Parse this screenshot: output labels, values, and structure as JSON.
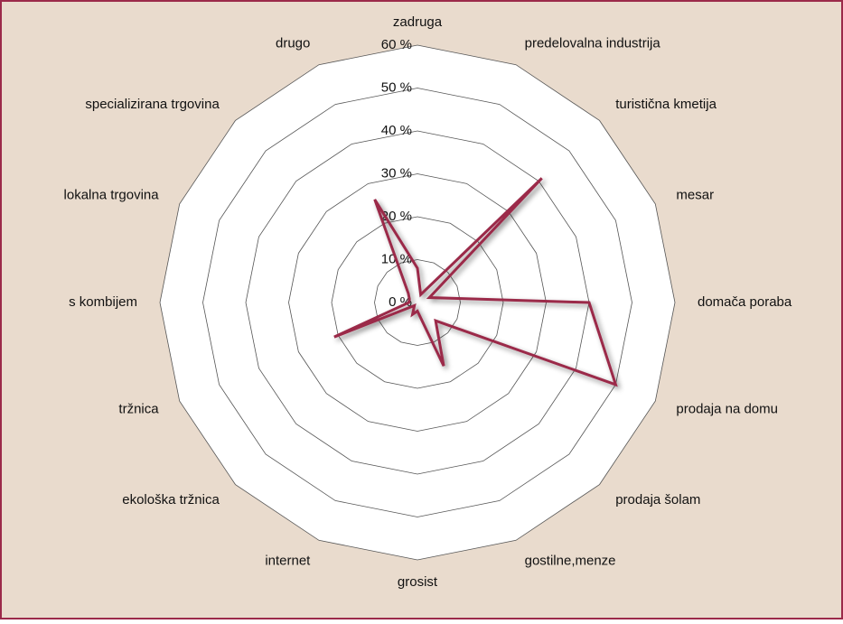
{
  "chart_data": {
    "type": "radar",
    "categories": [
      "zadruga",
      "predelovalna industrija",
      "turistična kmetija",
      "mesar",
      "domača poraba",
      "prodaja na domu",
      "prodaja šolam",
      "gostilne,menze",
      "grosist",
      "internet",
      "ekološka tržnica",
      "tržnica",
      "s kombijem",
      "lokalna trgovina",
      "specializirana trgovina",
      "drugo"
    ],
    "series": [
      {
        "color": "#9b2a4a",
        "values": [
          8,
          2,
          41,
          3,
          40,
          50,
          6,
          16,
          2,
          3,
          1,
          21,
          2,
          2,
          3,
          26
        ]
      }
    ],
    "rlim": [
      0,
      60
    ],
    "rticks": [
      {
        "value": 0,
        "label": "0 %"
      },
      {
        "value": 10,
        "label": "10 %"
      },
      {
        "value": 20,
        "label": "20 %"
      },
      {
        "value": 30,
        "label": "30 %"
      },
      {
        "value": 40,
        "label": "40 %"
      },
      {
        "value": 50,
        "label": "50 %"
      },
      {
        "value": 60,
        "label": "60 %"
      }
    ],
    "grid": true
  }
}
